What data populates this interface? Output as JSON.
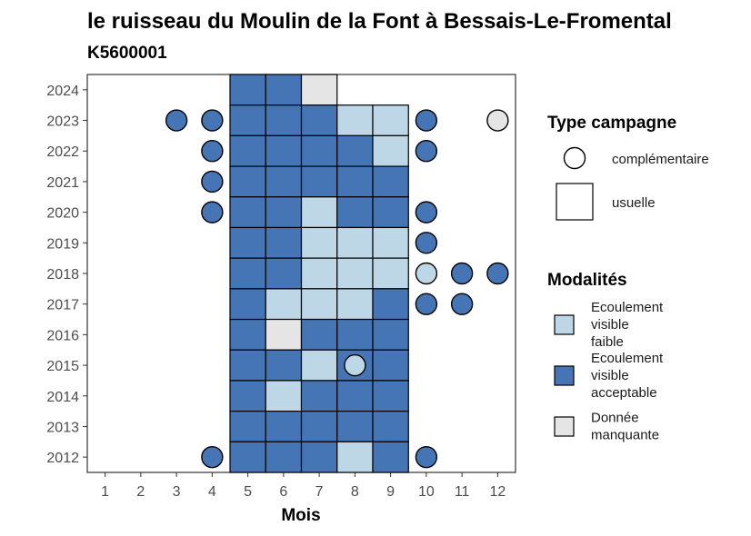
{
  "chart_data": {
    "type": "heatmap",
    "title": "le ruisseau du Moulin de la Font à Bessais-Le-Fromental",
    "subtitle": "K5600001",
    "xlabel": "Mois",
    "ylabel": "",
    "x_ticks": [
      "1",
      "2",
      "3",
      "4",
      "5",
      "6",
      "7",
      "8",
      "9",
      "10",
      "11",
      "12"
    ],
    "y_ticks": [
      "2024",
      "2023",
      "2022",
      "2021",
      "2020",
      "2019",
      "2018",
      "2017",
      "2016",
      "2015",
      "2014",
      "2013",
      "2012"
    ],
    "xlim": [
      0.5,
      12.5
    ],
    "ylim": [
      2011.5,
      2024.5
    ],
    "colors": {
      "Ecoulement visible faible": "#bdd7e7",
      "Ecoulement visible acceptable": "#4575b4",
      "Donnée manquante": "#e5e5e5"
    },
    "legend_type": {
      "title": "Type campagne",
      "items": [
        {
          "key": "complementaire",
          "label": "complémentaire",
          "shape": "circle"
        },
        {
          "key": "usuelle",
          "label": "usuelle",
          "shape": "square"
        }
      ]
    },
    "legend_mod": {
      "title": "Modalités",
      "items": [
        {
          "key": "faible",
          "lines": [
            "Ecoulement",
            "visible",
            "faible"
          ],
          "color": "#bdd7e7"
        },
        {
          "key": "acceptable",
          "lines": [
            "Ecoulement",
            "visible",
            "acceptable"
          ],
          "color": "#4575b4"
        },
        {
          "key": "manquante",
          "lines": [
            "Donnée",
            "manquante"
          ],
          "color": "#e5e5e5"
        }
      ]
    },
    "usuelle": [
      {
        "year": 2024,
        "month": 5,
        "mod": "acceptable"
      },
      {
        "year": 2024,
        "month": 6,
        "mod": "acceptable"
      },
      {
        "year": 2024,
        "month": 7,
        "mod": "manquante"
      },
      {
        "year": 2023,
        "month": 5,
        "mod": "acceptable"
      },
      {
        "year": 2023,
        "month": 6,
        "mod": "acceptable"
      },
      {
        "year": 2023,
        "month": 7,
        "mod": "acceptable"
      },
      {
        "year": 2023,
        "month": 8,
        "mod": "faible"
      },
      {
        "year": 2023,
        "month": 9,
        "mod": "faible"
      },
      {
        "year": 2022,
        "month": 5,
        "mod": "acceptable"
      },
      {
        "year": 2022,
        "month": 6,
        "mod": "acceptable"
      },
      {
        "year": 2022,
        "month": 7,
        "mod": "acceptable"
      },
      {
        "year": 2022,
        "month": 8,
        "mod": "acceptable"
      },
      {
        "year": 2022,
        "month": 9,
        "mod": "faible"
      },
      {
        "year": 2021,
        "month": 5,
        "mod": "acceptable"
      },
      {
        "year": 2021,
        "month": 6,
        "mod": "acceptable"
      },
      {
        "year": 2021,
        "month": 7,
        "mod": "acceptable"
      },
      {
        "year": 2021,
        "month": 8,
        "mod": "acceptable"
      },
      {
        "year": 2021,
        "month": 9,
        "mod": "acceptable"
      },
      {
        "year": 2020,
        "month": 5,
        "mod": "acceptable"
      },
      {
        "year": 2020,
        "month": 6,
        "mod": "acceptable"
      },
      {
        "year": 2020,
        "month": 7,
        "mod": "faible"
      },
      {
        "year": 2020,
        "month": 8,
        "mod": "acceptable"
      },
      {
        "year": 2020,
        "month": 9,
        "mod": "acceptable"
      },
      {
        "year": 2019,
        "month": 5,
        "mod": "acceptable"
      },
      {
        "year": 2019,
        "month": 6,
        "mod": "acceptable"
      },
      {
        "year": 2019,
        "month": 7,
        "mod": "faible"
      },
      {
        "year": 2019,
        "month": 8,
        "mod": "faible"
      },
      {
        "year": 2019,
        "month": 9,
        "mod": "faible"
      },
      {
        "year": 2018,
        "month": 5,
        "mod": "acceptable"
      },
      {
        "year": 2018,
        "month": 6,
        "mod": "acceptable"
      },
      {
        "year": 2018,
        "month": 7,
        "mod": "faible"
      },
      {
        "year": 2018,
        "month": 8,
        "mod": "faible"
      },
      {
        "year": 2018,
        "month": 9,
        "mod": "faible"
      },
      {
        "year": 2017,
        "month": 5,
        "mod": "acceptable"
      },
      {
        "year": 2017,
        "month": 6,
        "mod": "faible"
      },
      {
        "year": 2017,
        "month": 7,
        "mod": "faible"
      },
      {
        "year": 2017,
        "month": 8,
        "mod": "faible"
      },
      {
        "year": 2017,
        "month": 9,
        "mod": "acceptable"
      },
      {
        "year": 2016,
        "month": 5,
        "mod": "acceptable"
      },
      {
        "year": 2016,
        "month": 6,
        "mod": "manquante"
      },
      {
        "year": 2016,
        "month": 7,
        "mod": "acceptable"
      },
      {
        "year": 2016,
        "month": 8,
        "mod": "acceptable"
      },
      {
        "year": 2016,
        "month": 9,
        "mod": "acceptable"
      },
      {
        "year": 2015,
        "month": 5,
        "mod": "acceptable"
      },
      {
        "year": 2015,
        "month": 6,
        "mod": "acceptable"
      },
      {
        "year": 2015,
        "month": 7,
        "mod": "faible"
      },
      {
        "year": 2015,
        "month": 8,
        "mod": "acceptable"
      },
      {
        "year": 2015,
        "month": 9,
        "mod": "acceptable"
      },
      {
        "year": 2014,
        "month": 5,
        "mod": "acceptable"
      },
      {
        "year": 2014,
        "month": 6,
        "mod": "faible"
      },
      {
        "year": 2014,
        "month": 7,
        "mod": "acceptable"
      },
      {
        "year": 2014,
        "month": 8,
        "mod": "acceptable"
      },
      {
        "year": 2014,
        "month": 9,
        "mod": "acceptable"
      },
      {
        "year": 2013,
        "month": 5,
        "mod": "acceptable"
      },
      {
        "year": 2013,
        "month": 6,
        "mod": "acceptable"
      },
      {
        "year": 2013,
        "month": 7,
        "mod": "acceptable"
      },
      {
        "year": 2013,
        "month": 8,
        "mod": "acceptable"
      },
      {
        "year": 2013,
        "month": 9,
        "mod": "acceptable"
      },
      {
        "year": 2012,
        "month": 5,
        "mod": "acceptable"
      },
      {
        "year": 2012,
        "month": 6,
        "mod": "acceptable"
      },
      {
        "year": 2012,
        "month": 7,
        "mod": "acceptable"
      },
      {
        "year": 2012,
        "month": 8,
        "mod": "faible"
      },
      {
        "year": 2012,
        "month": 9,
        "mod": "acceptable"
      }
    ],
    "complementaire": [
      {
        "year": 2023,
        "month": 3,
        "mod": "acceptable"
      },
      {
        "year": 2023,
        "month": 4,
        "mod": "acceptable"
      },
      {
        "year": 2023,
        "month": 10,
        "mod": "acceptable"
      },
      {
        "year": 2023,
        "month": 12,
        "mod": "manquante"
      },
      {
        "year": 2022,
        "month": 4,
        "mod": "acceptable"
      },
      {
        "year": 2022,
        "month": 10,
        "mod": "acceptable"
      },
      {
        "year": 2021,
        "month": 4,
        "mod": "acceptable"
      },
      {
        "year": 2020,
        "month": 4,
        "mod": "acceptable"
      },
      {
        "year": 2020,
        "month": 10,
        "mod": "acceptable"
      },
      {
        "year": 2019,
        "month": 10,
        "mod": "acceptable"
      },
      {
        "year": 2018,
        "month": 10,
        "mod": "faible"
      },
      {
        "year": 2018,
        "month": 11,
        "mod": "acceptable"
      },
      {
        "year": 2018,
        "month": 12,
        "mod": "acceptable"
      },
      {
        "year": 2017,
        "month": 10,
        "mod": "acceptable"
      },
      {
        "year": 2017,
        "month": 11,
        "mod": "acceptable"
      },
      {
        "year": 2015,
        "month": 8,
        "mod": "faible"
      },
      {
        "year": 2012,
        "month": 4,
        "mod": "acceptable"
      },
      {
        "year": 2012,
        "month": 10,
        "mod": "acceptable"
      }
    ]
  }
}
